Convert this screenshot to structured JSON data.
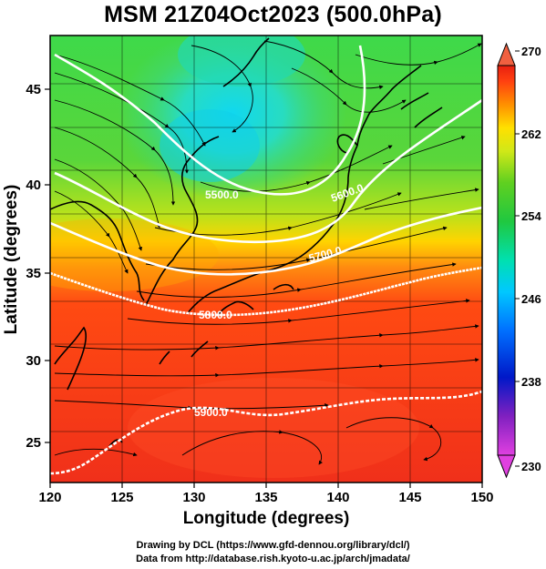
{
  "title": "MSM 21Z04Oct2023 (500.0hPa)",
  "map": {
    "xlabel": "Longitude (degrees)",
    "ylabel": "Latitude  (degrees)",
    "xticks": [
      "120",
      "125",
      "130",
      "135",
      "140",
      "145",
      "150"
    ],
    "yticks": [
      "25",
      "30",
      "35",
      "40",
      "45"
    ],
    "contour_labels": [
      "5500.0",
      "5600.0",
      "5700.0",
      "5800.0",
      "5900.0"
    ]
  },
  "colorbar": {
    "ticks": [
      "230",
      "238",
      "246",
      "254",
      "262",
      "270"
    ],
    "colors": [
      "#e040e0",
      "#6020c0",
      "#0020c0",
      "#0080ff",
      "#00c8ff",
      "#00e0c0",
      "#20d060",
      "#20c020",
      "#a0e020",
      "#ffe000",
      "#ff9000",
      "#ff4010",
      "#e82010"
    ]
  },
  "credits": {
    "line1": "Drawing by DCL (https://www.gfd-dennou.org/library/dcl/)",
    "line2": "Data from http://database.rish.kyoto-u.ac.jp/arch/jmadata/"
  }
}
